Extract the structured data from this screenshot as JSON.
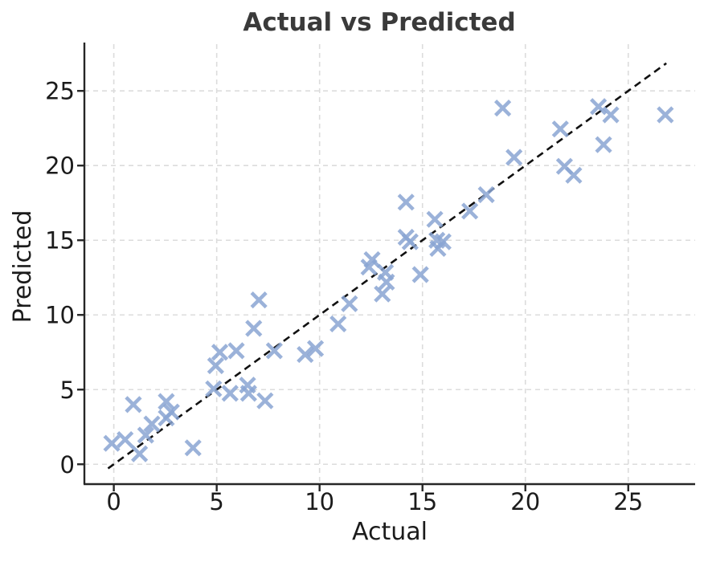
{
  "chart_data": {
    "type": "scatter",
    "title": "Actual vs Predicted",
    "xlabel": "Actual",
    "ylabel": "Predicted",
    "xlim": [
      -1.43,
      28.25
    ],
    "ylim": [
      -1.33,
      28.13
    ],
    "xticks": [
      0,
      5,
      10,
      15,
      20,
      25
    ],
    "yticks": [
      0,
      5,
      10,
      15,
      20,
      25
    ],
    "grid": true,
    "grid_style": "dashed",
    "grid_color": "#dcdcdc",
    "spine_color": "#262626",
    "marker": "x",
    "marker_color": "#8aa5d2",
    "marker_size_px": 20,
    "identity_line": {
      "style": "dashed",
      "color": "#111111",
      "from": [
        -0.28,
        -0.28
      ],
      "to": [
        26.85,
        26.85
      ]
    },
    "points": [
      [
        -0.1,
        1.4
      ],
      [
        0.55,
        1.65
      ],
      [
        0.95,
        4.0
      ],
      [
        1.25,
        0.7
      ],
      [
        1.55,
        1.95
      ],
      [
        1.85,
        2.7
      ],
      [
        2.55,
        4.2
      ],
      [
        2.8,
        3.5
      ],
      [
        2.55,
        3.1
      ],
      [
        3.85,
        1.1
      ],
      [
        4.85,
        5.05
      ],
      [
        4.95,
        6.6
      ],
      [
        5.65,
        4.75
      ],
      [
        5.15,
        7.5
      ],
      [
        5.95,
        7.6
      ],
      [
        6.5,
        5.3
      ],
      [
        6.55,
        4.75
      ],
      [
        7.35,
        4.25
      ],
      [
        7.05,
        11.0
      ],
      [
        6.8,
        9.1
      ],
      [
        7.8,
        7.6
      ],
      [
        9.3,
        7.35
      ],
      [
        9.8,
        7.75
      ],
      [
        10.9,
        9.4
      ],
      [
        11.45,
        10.75
      ],
      [
        12.55,
        13.7
      ],
      [
        12.4,
        13.2
      ],
      [
        13.2,
        12.85
      ],
      [
        13.25,
        12.2
      ],
      [
        13.05,
        11.4
      ],
      [
        14.9,
        12.7
      ],
      [
        14.2,
        15.2
      ],
      [
        14.4,
        14.9
      ],
      [
        15.7,
        15.0
      ],
      [
        16.0,
        14.9
      ],
      [
        15.75,
        14.45
      ],
      [
        14.2,
        17.55
      ],
      [
        15.6,
        16.4
      ],
      [
        17.3,
        16.95
      ],
      [
        18.1,
        18.05
      ],
      [
        18.9,
        23.85
      ],
      [
        19.45,
        20.55
      ],
      [
        21.7,
        22.45
      ],
      [
        23.55,
        23.95
      ],
      [
        24.15,
        23.4
      ],
      [
        26.8,
        23.4
      ],
      [
        23.8,
        21.4
      ],
      [
        21.9,
        19.95
      ],
      [
        22.35,
        19.35
      ]
    ]
  }
}
